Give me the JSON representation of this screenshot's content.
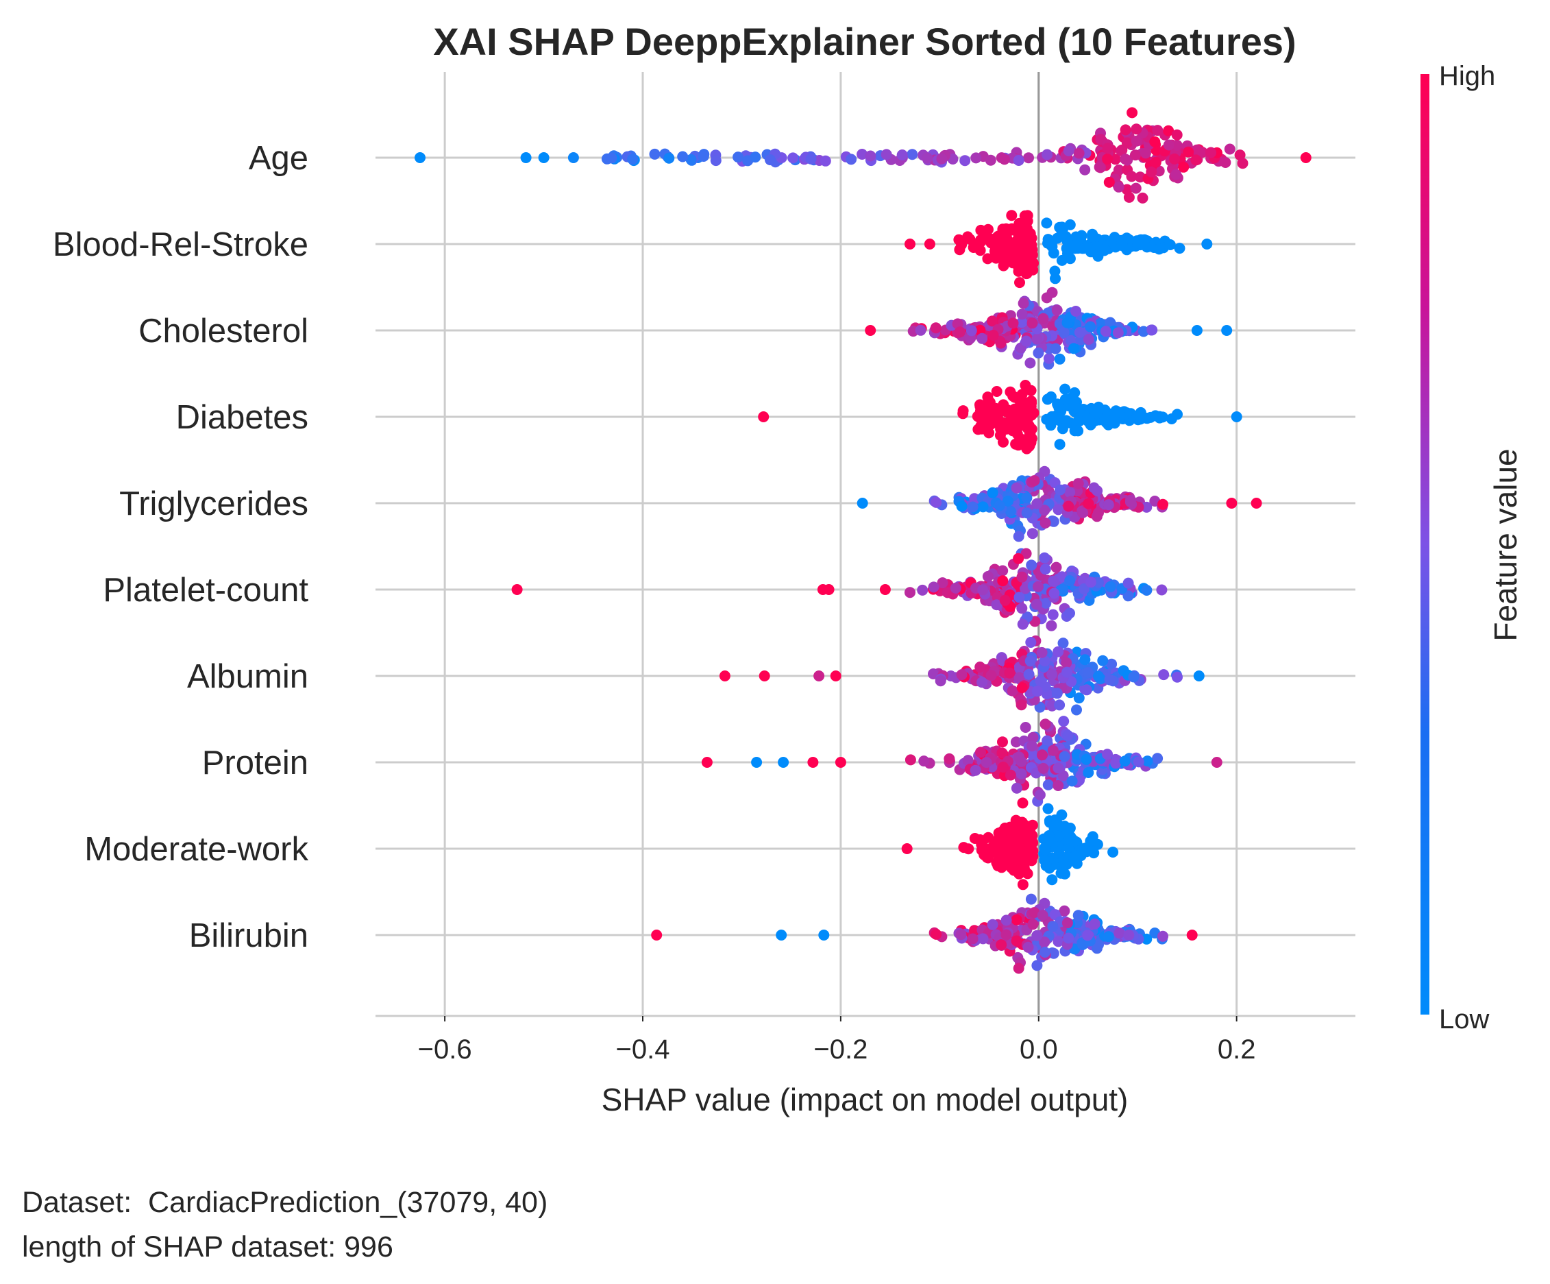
{
  "chart_data": {
    "type": "scatter",
    "subtype": "shap-beeswarm",
    "title": "XAI SHAP DeeppExplainer Sorted  (10 Features)",
    "xlabel": "SHAP value (impact on model output)",
    "xlim": [
      -0.67,
      0.32
    ],
    "xticks": [
      -0.6,
      -0.4,
      -0.2,
      0.0,
      0.2
    ],
    "xtick_labels": [
      "−0.6",
      "−0.4",
      "−0.2",
      "0.0",
      "0.2"
    ],
    "grid": true,
    "colorbar": {
      "label": "Feature value",
      "high_label": "High",
      "low_label": "Low",
      "low_color": "#008bfb",
      "mid_color": "#7c52e6",
      "high_color": "#ff0052"
    },
    "features": [
      {
        "name": "Age",
        "min": -0.625,
        "max": 0.27,
        "width": 0.4,
        "center": 0.1,
        "outliers": [
          {
            "x": -0.625,
            "c": 0
          },
          {
            "x": -0.518,
            "c": 0
          },
          {
            "x": -0.5,
            "c": 0
          },
          {
            "x": -0.47,
            "c": 0.05
          },
          {
            "x": 0.27,
            "c": 1
          }
        ]
      },
      {
        "name": "Blood-Rel-Stroke",
        "min": -0.13,
        "max": 0.17,
        "width": 0.34,
        "center": -0.005,
        "outliers": [
          {
            "x": -0.13,
            "c": 1
          },
          {
            "x": -0.11,
            "c": 1
          },
          {
            "x": 0.17,
            "c": 0
          }
        ]
      },
      {
        "name": "Cholesterol",
        "min": -0.17,
        "max": 0.19,
        "width": 0.3,
        "center": 0.0,
        "outliers": [
          {
            "x": -0.17,
            "c": 1
          },
          {
            "x": 0.16,
            "c": 0
          },
          {
            "x": 0.19,
            "c": 0
          }
        ]
      },
      {
        "name": "Diabetes",
        "min": -0.1,
        "max": 0.14,
        "width": 0.34,
        "center": -0.01,
        "outliers": [
          {
            "x": -0.278,
            "c": 1
          },
          {
            "x": 0.2,
            "c": 0
          }
        ]
      },
      {
        "name": "Triglycerides",
        "min": -0.18,
        "max": 0.195,
        "width": 0.3,
        "center": 0.01,
        "outliers": [
          {
            "x": -0.178,
            "c": 0
          },
          {
            "x": 0.22,
            "c": 1
          },
          {
            "x": 0.195,
            "c": 1
          }
        ]
      },
      {
        "name": "Platelet-count",
        "min": -0.13,
        "max": 0.155,
        "width": 0.3,
        "center": 0.0,
        "outliers": [
          {
            "x": -0.527,
            "c": 1
          },
          {
            "x": -0.218,
            "c": 1
          },
          {
            "x": -0.212,
            "c": 1
          },
          {
            "x": -0.155,
            "c": 1
          }
        ]
      },
      {
        "name": "Albumin",
        "min": -0.18,
        "max": 0.14,
        "width": 0.3,
        "center": 0.01,
        "outliers": [
          {
            "x": -0.317,
            "c": 1
          },
          {
            "x": -0.277,
            "c": 1
          },
          {
            "x": -0.222,
            "c": 0.8
          },
          {
            "x": -0.205,
            "c": 1
          },
          {
            "x": 0.162,
            "c": 0
          }
        ]
      },
      {
        "name": "Protein",
        "min": -0.165,
        "max": 0.12,
        "width": 0.28,
        "center": 0.01,
        "outliers": [
          {
            "x": -0.335,
            "c": 1
          },
          {
            "x": -0.285,
            "c": 0
          },
          {
            "x": -0.258,
            "c": 0
          },
          {
            "x": -0.228,
            "c": 1
          },
          {
            "x": -0.2,
            "c": 1
          },
          {
            "x": 0.18,
            "c": 0.8
          }
        ]
      },
      {
        "name": "Moderate-work",
        "min": -0.1,
        "max": 0.075,
        "width": 0.34,
        "center": 0.0,
        "outliers": [
          {
            "x": -0.133,
            "c": 1
          }
        ]
      },
      {
        "name": "Bilirubin",
        "min": -0.18,
        "max": 0.13,
        "width": 0.28,
        "center": 0.01,
        "outliers": [
          {
            "x": -0.386,
            "c": 1
          },
          {
            "x": -0.26,
            "c": 0
          },
          {
            "x": -0.217,
            "c": 0
          },
          {
            "x": 0.155,
            "c": 1
          }
        ]
      }
    ]
  },
  "footer": {
    "line1": "Dataset:  CardiacPrediction_(37079, 40)",
    "line2": "length of SHAP dataset: 996"
  }
}
